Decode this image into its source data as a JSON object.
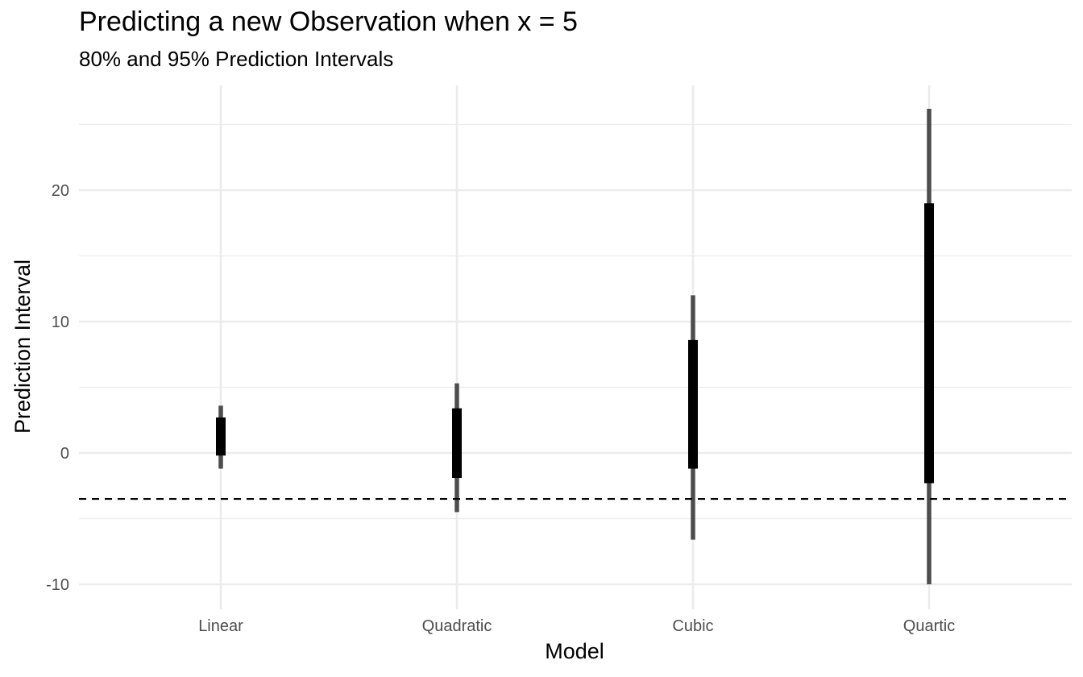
{
  "chart_data": {
    "type": "interval",
    "title": "Predicting a new Observation when x = 5",
    "subtitle": "80% and 95% Prediction Intervals",
    "xlabel": "Model",
    "ylabel": "Prediction Interval",
    "categories": [
      "Linear",
      "Quadratic",
      "Cubic",
      "Quartic"
    ],
    "intervals": [
      {
        "category": "Linear",
        "lower95": -1.2,
        "upper95": 3.6,
        "lower80": -0.2,
        "upper80": 2.7
      },
      {
        "category": "Quadratic",
        "lower95": -4.5,
        "upper95": 5.3,
        "lower80": -1.9,
        "upper80": 3.4
      },
      {
        "category": "Cubic",
        "lower95": -6.6,
        "upper95": 12.0,
        "lower80": -1.2,
        "upper80": 8.6
      },
      {
        "category": "Quartic",
        "lower95": -10.0,
        "upper95": 26.2,
        "lower80": -2.3,
        "upper80": 19.0
      }
    ],
    "reference_line": {
      "y": -3.5,
      "style": "dashed"
    },
    "yticks": [
      -10,
      0,
      10,
      20
    ],
    "ylim": [
      -11.3,
      27.6
    ],
    "grid": true,
    "colors": {
      "outer": "#4d4d4d",
      "inner": "#000000",
      "grid": "#ebebeb",
      "reference": "#000000"
    }
  }
}
